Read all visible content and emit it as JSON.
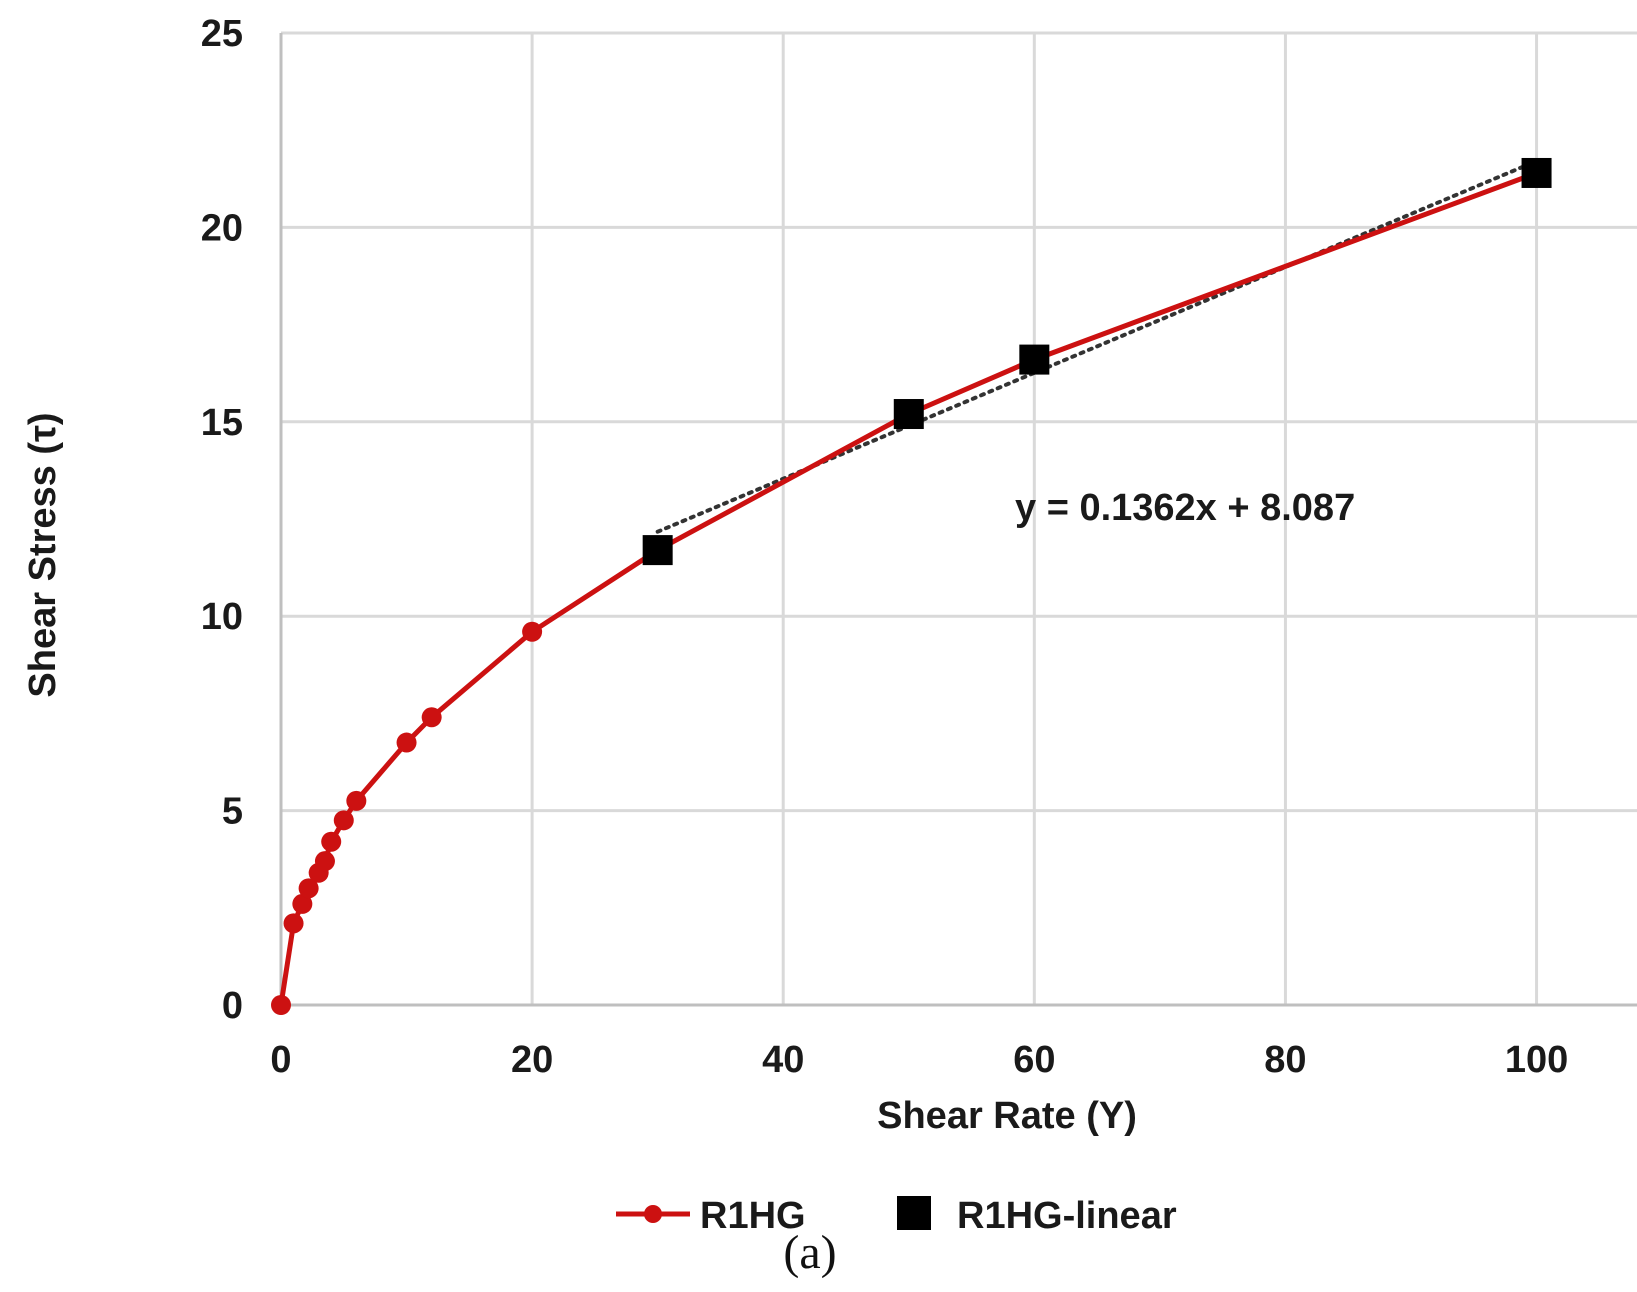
{
  "chart_data": {
    "type": "line",
    "xlabel": "Shear Rate (Υ)",
    "ylabel": "Shear Stress (τ)",
    "xlim": [
      0,
      108
    ],
    "ylim": [
      0,
      25
    ],
    "x_ticks": [
      0,
      20,
      40,
      60,
      80,
      100
    ],
    "y_ticks": [
      0,
      5,
      10,
      15,
      20,
      25
    ],
    "grid": true,
    "legend_position": "bottom",
    "series": [
      {
        "name": "R1HG",
        "color": "#cc1111",
        "marker": "circle",
        "x": [
          0,
          1,
          1.7,
          2.2,
          3,
          3.5,
          4,
          5,
          6,
          10,
          12,
          20,
          30,
          50,
          60,
          100
        ],
        "y": [
          0,
          2.1,
          2.6,
          3.0,
          3.4,
          3.7,
          4.2,
          4.75,
          5.25,
          6.75,
          7.4,
          9.6,
          11.7,
          15.2,
          16.6,
          21.4
        ]
      },
      {
        "name": "R1HG-linear",
        "color": "#000000",
        "marker": "square",
        "x": [
          30,
          50,
          60,
          100
        ],
        "y": [
          11.7,
          15.2,
          16.6,
          21.4
        ]
      }
    ],
    "trendline": {
      "series": "R1HG-linear",
      "style": "dotted",
      "color": "#333333",
      "slope": 0.1362,
      "intercept": 8.087,
      "x_range": [
        30,
        100
      ],
      "equation_label": "y = 0.1362x + 8.087"
    },
    "caption": "(a)"
  }
}
